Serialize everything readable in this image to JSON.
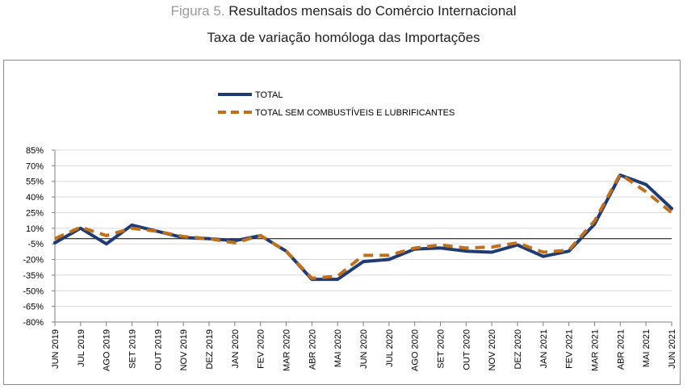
{
  "header": {
    "figure_label": "Figura 5.",
    "title": "Resultados mensais do Comércio Internacional",
    "subtitle": "Taxa de variação homóloga das Importações"
  },
  "chart_data": {
    "type": "line",
    "categories": [
      "JUN 2019",
      "JUL 2019",
      "AGO 2019",
      "SET 2019",
      "OUT 2019",
      "NOV 2019",
      "DEZ 2019",
      "JAN 2020",
      "FEV 2020",
      "MAR 2020",
      "ABR 2020",
      "MAI 2020",
      "JUN 2020",
      "JUL 2020",
      "AGO 2020",
      "SET 2020",
      "OUT 2020",
      "NOV 2020",
      "DEZ 2020",
      "JAN 2021",
      "FEV 2021",
      "MAR 2021",
      "ABR 2021",
      "MAI 2021",
      "JUN 2021"
    ],
    "y_ticks": [
      "85%",
      "70%",
      "55%",
      "40%",
      "25%",
      "10%",
      "-5%",
      "-20%",
      "-35%",
      "-50%",
      "-65%",
      "-80%"
    ],
    "ylim": [
      -80,
      85
    ],
    "grid": true,
    "legend_position": "top-left",
    "series": [
      {
        "name": "TOTAL",
        "color": "#1f3b73",
        "style": "solid",
        "values": [
          -4,
          10,
          -5,
          13,
          7,
          1,
          0,
          -2,
          3,
          -12,
          -39,
          -39,
          -22,
          -20,
          -10,
          -9,
          -12,
          -13,
          -6,
          -17,
          -12,
          14,
          61,
          52,
          29
        ]
      },
      {
        "name": "TOTAL SEM COMBUSTÍVEIS  E LUBRIFICANTES",
        "color": "#c0701a",
        "style": "dashed",
        "values": [
          0,
          11,
          3,
          10,
          7,
          2,
          0,
          -4,
          3,
          -12,
          -38,
          -36,
          -16,
          -16,
          -9,
          -6,
          -9,
          -8,
          -4,
          -13,
          -11,
          17,
          62,
          45,
          25
        ]
      }
    ]
  }
}
